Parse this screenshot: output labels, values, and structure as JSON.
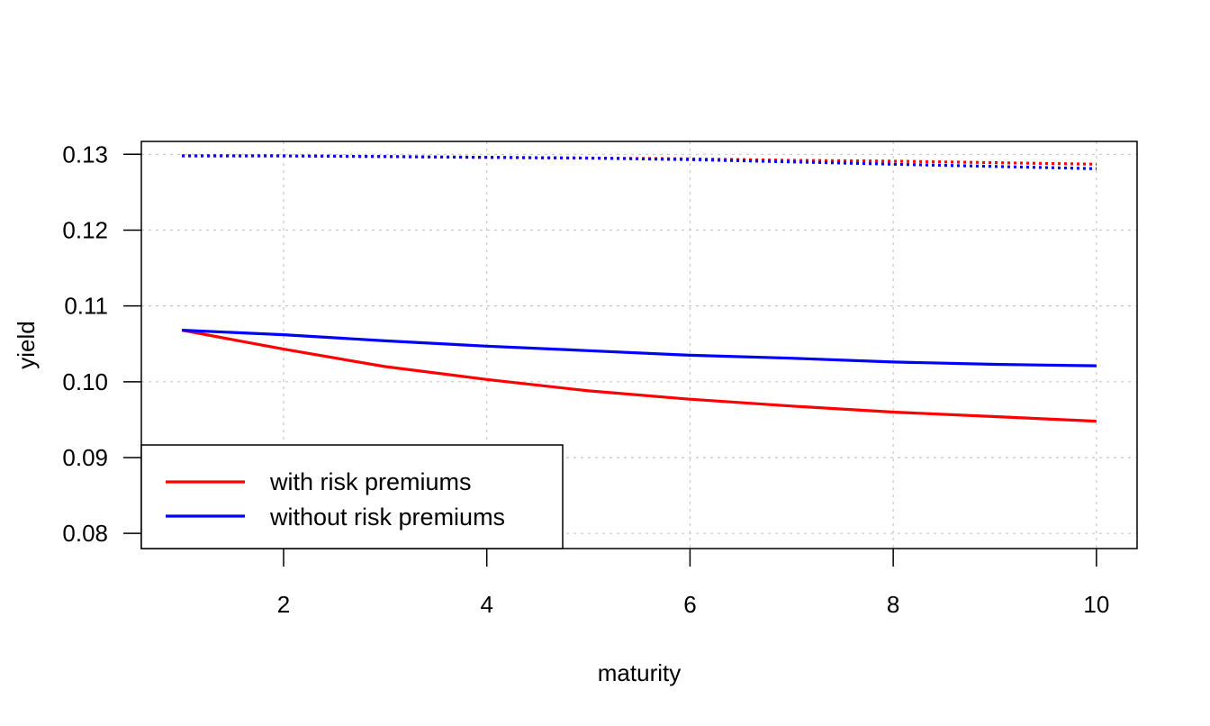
{
  "chart_data": {
    "type": "line",
    "xlabel": "maturity",
    "ylabel": "yield",
    "xlim": [
      0.6,
      10.4
    ],
    "ylim": [
      0.078,
      0.1317
    ],
    "xticks": [
      2,
      4,
      6,
      8,
      10
    ],
    "xtick_labels": [
      "2",
      "4",
      "6",
      "8",
      "10"
    ],
    "yticks": [
      0.08,
      0.09,
      0.1,
      0.11,
      0.12,
      0.13
    ],
    "ytick_labels": [
      "0.08",
      "0.09",
      "0.10",
      "0.11",
      "0.12",
      "0.13"
    ],
    "grid": true,
    "legend_position": "bottom-left",
    "legend": [
      {
        "label": "with risk premiums",
        "color": "#ff0000"
      },
      {
        "label": "without risk premiums",
        "color": "#0000ff"
      }
    ],
    "x": [
      1,
      2,
      3,
      4,
      5,
      6,
      7,
      8,
      9,
      10
    ],
    "series": [
      {
        "color": "#ff0000",
        "style": "solid",
        "values": [
          0.1068,
          0.1043,
          0.102,
          0.1003,
          0.0988,
          0.0977,
          0.0968,
          0.096,
          0.0954,
          0.0948
        ]
      },
      {
        "color": "#0000ff",
        "style": "solid",
        "values": [
          0.1068,
          0.1062,
          0.1054,
          0.1047,
          0.1041,
          0.1035,
          0.1031,
          0.1026,
          0.1023,
          0.1021
        ]
      },
      {
        "color": "#ff0000",
        "style": "dotted",
        "values": [
          0.1298,
          0.1298,
          0.1297,
          0.1296,
          0.1295,
          0.1294,
          0.1292,
          0.1291,
          0.1289,
          0.1287
        ]
      },
      {
        "color": "#0000ff",
        "style": "dotted",
        "values": [
          0.1298,
          0.1298,
          0.1297,
          0.1296,
          0.1295,
          0.1293,
          0.129,
          0.1287,
          0.1284,
          0.1281
        ]
      }
    ]
  }
}
